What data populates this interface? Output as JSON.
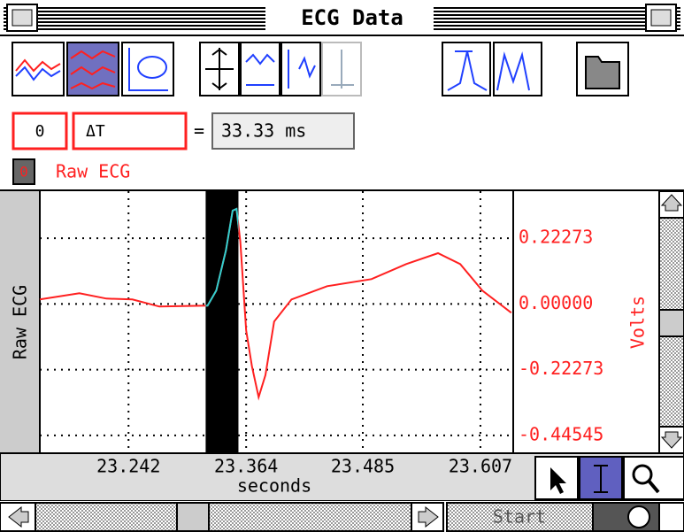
{
  "window": {
    "title": "ECG Data"
  },
  "toolbar": {
    "channel": "0",
    "measure": "ΔT",
    "equals": "=",
    "result": "33.33 ms"
  },
  "channel_row": {
    "number": "0",
    "name": "Raw ECG"
  },
  "controls": {
    "start": "Start"
  },
  "chart_data": {
    "type": "line",
    "ylabel_left": "Raw ECG",
    "ylabel_right": "Volts",
    "xlabel": "seconds",
    "x": [
      23.15,
      23.191,
      23.219,
      23.246,
      23.274,
      23.324,
      23.333,
      23.343,
      23.35,
      23.354,
      23.358,
      23.364,
      23.37,
      23.377,
      23.384,
      23.393,
      23.411,
      23.448,
      23.494,
      23.53,
      23.563,
      23.586,
      23.609,
      23.639
    ],
    "series": [
      {
        "name": "Raw ECG",
        "color": "#ff2020",
        "values": [
          0.015,
          0.036,
          0.018,
          0.015,
          -0.009,
          -0.006,
          0.045,
          0.181,
          0.316,
          0.322,
          0.211,
          -0.09,
          -0.211,
          -0.316,
          -0.241,
          -0.06,
          0.015,
          0.06,
          0.084,
          0.135,
          0.172,
          0.135,
          0.045,
          -0.03
        ]
      }
    ],
    "selection": [
      23.322,
      23.356
    ],
    "selection_color": "#30d0d0",
    "xlim": [
      23.15,
      23.641
    ],
    "ylim": [
      -0.506,
      0.382
    ],
    "xticks": [
      23.242,
      23.364,
      23.485,
      23.607
    ],
    "yticks": [
      0.22273,
      {
        "value": 0,
        "label": "0.00000"
      },
      -0.22273,
      -0.44545
    ],
    "grid": true
  }
}
